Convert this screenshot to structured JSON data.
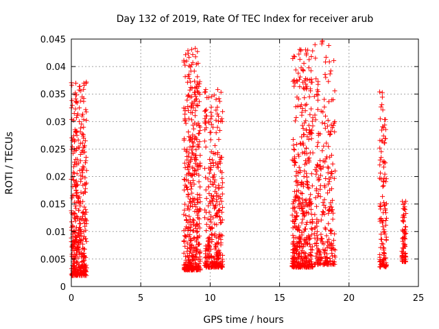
{
  "chart_data": {
    "type": "scatter",
    "title": "Day 132 of 2019, Rate Of TEC Index for receiver arub",
    "xlabel": "GPS time / hours",
    "ylabel": "ROTI / TECUs",
    "xlim": [
      0,
      25
    ],
    "ylim": [
      0,
      0.045
    ],
    "xticks": [
      0,
      5,
      10,
      15,
      20,
      25
    ],
    "xtick_labels": [
      "0",
      "5",
      "10",
      "15",
      "20",
      "25"
    ],
    "yticks": [
      0,
      0.005,
      0.01,
      0.015,
      0.02,
      0.025,
      0.03,
      0.035,
      0.04,
      0.045
    ],
    "ytick_labels": [
      "0",
      "0.005",
      "0.01",
      "0.015",
      "0.02",
      "0.025",
      "0.03",
      "0.035",
      "0.04",
      "0.045"
    ],
    "grid": true,
    "marker": "+",
    "color": "#ff0000",
    "clusters": [
      {
        "x_min": 0.0,
        "x_max": 1.1,
        "y_min": 0.002,
        "y_max": 0.0375,
        "n": 420
      },
      {
        "x_min": 8.1,
        "x_max": 9.3,
        "y_min": 0.003,
        "y_max": 0.0435,
        "n": 420
      },
      {
        "x_min": 9.6,
        "x_max": 10.9,
        "y_min": 0.0035,
        "y_max": 0.036,
        "n": 320
      },
      {
        "x_min": 15.9,
        "x_max": 17.4,
        "y_min": 0.0035,
        "y_max": 0.0432,
        "n": 440
      },
      {
        "x_min": 17.5,
        "x_max": 19.0,
        "y_min": 0.004,
        "y_max": 0.0448,
        "n": 260
      },
      {
        "x_min": 22.2,
        "x_max": 22.7,
        "y_min": 0.0035,
        "y_max": 0.036,
        "n": 120
      },
      {
        "x_min": 23.8,
        "x_max": 24.1,
        "y_min": 0.0045,
        "y_max": 0.0155,
        "n": 70
      }
    ]
  }
}
